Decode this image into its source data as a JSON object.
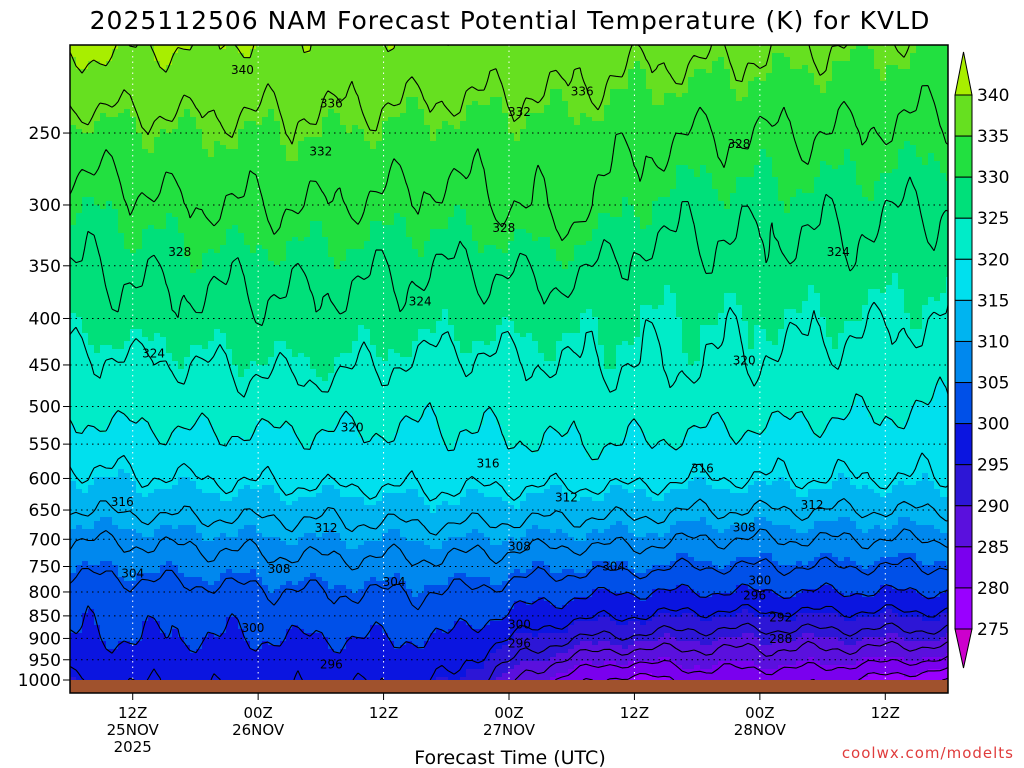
{
  "title": "2025112506 NAM Forecast Potential Temperature (K) for KVLD",
  "xlabel": "Forecast Time (UTC)",
  "credit": "coolwx.com/modelts",
  "colors": {
    "ground": "#a0522d",
    "contour": "#000000",
    "credit": "#e03c3c"
  },
  "chart_data": {
    "type": "heatmap",
    "title": "2025112506 NAM Forecast Potential Temperature (K) for KVLD",
    "xlabel": "Forecast Time (UTC)",
    "ylabel": "",
    "y_axis": {
      "scale": "log",
      "reversed": true,
      "range": [
        1000,
        200
      ],
      "ticks": [
        250,
        300,
        350,
        400,
        450,
        500,
        550,
        600,
        650,
        700,
        750,
        800,
        850,
        900,
        950,
        1000
      ]
    },
    "x_axis": {
      "range_hours": [
        0,
        84
      ],
      "ticks": [
        {
          "hour": 6,
          "lines": [
            "12Z",
            "25NOV",
            "2025"
          ]
        },
        {
          "hour": 18,
          "lines": [
            "00Z",
            "26NOV"
          ]
        },
        {
          "hour": 30,
          "lines": [
            "12Z"
          ]
        },
        {
          "hour": 42,
          "lines": [
            "00Z",
            "27NOV"
          ]
        },
        {
          "hour": 54,
          "lines": [
            "12Z"
          ]
        },
        {
          "hour": 66,
          "lines": [
            "00Z",
            "28NOV"
          ]
        },
        {
          "hour": 78,
          "lines": [
            "12Z"
          ]
        }
      ]
    },
    "grid": true,
    "colorbar": {
      "levels": [
        275,
        280,
        285,
        290,
        295,
        300,
        305,
        310,
        315,
        320,
        325,
        330,
        335,
        340
      ],
      "colors": [
        "#cc00cc",
        "#9900ff",
        "#7a00ee",
        "#5a10dd",
        "#2d16d6",
        "#0b15e0",
        "#0050e8",
        "#0088ee",
        "#00b4f0",
        "#00e0ee",
        "#00ecc8",
        "#00e07a",
        "#22e040",
        "#66e020",
        "#a8ee00"
      ],
      "labels": [
        340,
        335,
        330,
        325,
        320,
        315,
        310,
        305,
        300,
        295,
        290,
        285,
        280,
        275
      ]
    },
    "contour_interval": 4,
    "columns": [
      {
        "hour": 0,
        "theta": [
          [
            1000,
            296
          ],
          [
            950,
            298
          ],
          [
            900,
            300
          ],
          [
            850,
            301
          ],
          [
            800,
            302
          ],
          [
            750,
            305
          ],
          [
            700,
            308
          ],
          [
            650,
            312
          ],
          [
            600,
            315
          ],
          [
            550,
            318
          ],
          [
            500,
            321
          ],
          [
            450,
            323
          ],
          [
            400,
            326
          ],
          [
            350,
            328
          ],
          [
            300,
            330
          ],
          [
            250,
            334
          ],
          [
            200,
            341
          ]
        ]
      },
      {
        "hour": 12,
        "theta": [
          [
            1000,
            297
          ],
          [
            950,
            298
          ],
          [
            900,
            300
          ],
          [
            850,
            301
          ],
          [
            800,
            303
          ],
          [
            750,
            306
          ],
          [
            700,
            309
          ],
          [
            650,
            313
          ],
          [
            600,
            316
          ],
          [
            550,
            319
          ],
          [
            500,
            322
          ],
          [
            450,
            324
          ],
          [
            400,
            327
          ],
          [
            350,
            329
          ],
          [
            300,
            332
          ],
          [
            250,
            335
          ],
          [
            200,
            340
          ]
        ]
      },
      {
        "hour": 24,
        "theta": [
          [
            1000,
            297
          ],
          [
            950,
            298
          ],
          [
            900,
            300
          ],
          [
            850,
            302
          ],
          [
            800,
            304
          ],
          [
            750,
            307
          ],
          [
            700,
            310
          ],
          [
            650,
            313
          ],
          [
            600,
            317
          ],
          [
            550,
            319
          ],
          [
            500,
            322
          ],
          [
            450,
            325
          ],
          [
            400,
            327
          ],
          [
            350,
            329
          ],
          [
            300,
            332
          ],
          [
            250,
            335
          ],
          [
            200,
            339
          ]
        ]
      },
      {
        "hour": 36,
        "theta": [
          [
            1000,
            296
          ],
          [
            950,
            298
          ],
          [
            900,
            300
          ],
          [
            850,
            302
          ],
          [
            800,
            304
          ],
          [
            750,
            307
          ],
          [
            700,
            310
          ],
          [
            650,
            314
          ],
          [
            600,
            317
          ],
          [
            550,
            319
          ],
          [
            500,
            321
          ],
          [
            450,
            323
          ],
          [
            400,
            326
          ],
          [
            350,
            328
          ],
          [
            300,
            331
          ],
          [
            250,
            334
          ],
          [
            200,
            339
          ]
        ]
      },
      {
        "hour": 48,
        "theta": [
          [
            1000,
            282
          ],
          [
            950,
            287
          ],
          [
            900,
            292
          ],
          [
            850,
            297
          ],
          [
            800,
            301
          ],
          [
            750,
            305
          ],
          [
            700,
            309
          ],
          [
            650,
            313
          ],
          [
            600,
            317
          ],
          [
            550,
            320
          ],
          [
            500,
            322
          ],
          [
            450,
            324
          ],
          [
            400,
            326
          ],
          [
            350,
            329
          ],
          [
            300,
            333
          ],
          [
            250,
            334
          ],
          [
            200,
            338
          ]
        ]
      },
      {
        "hour": 54,
        "theta": [
          [
            1000,
            278
          ],
          [
            950,
            285
          ],
          [
            900,
            291
          ],
          [
            850,
            296
          ],
          [
            800,
            300
          ],
          [
            750,
            305
          ],
          [
            700,
            309
          ],
          [
            650,
            313
          ],
          [
            600,
            317
          ],
          [
            550,
            320
          ],
          [
            500,
            322
          ],
          [
            450,
            324
          ],
          [
            400,
            325
          ],
          [
            350,
            327
          ],
          [
            300,
            330
          ],
          [
            250,
            333
          ],
          [
            200,
            337
          ]
        ]
      },
      {
        "hour": 60,
        "theta": [
          [
            1000,
            282
          ],
          [
            950,
            286
          ],
          [
            900,
            290
          ],
          [
            850,
            295
          ],
          [
            800,
            300
          ],
          [
            750,
            304
          ],
          [
            700,
            308
          ],
          [
            650,
            312
          ],
          [
            600,
            316
          ],
          [
            550,
            319
          ],
          [
            500,
            322
          ],
          [
            450,
            324
          ],
          [
            400,
            325
          ],
          [
            350,
            327
          ],
          [
            300,
            329
          ],
          [
            250,
            332
          ],
          [
            200,
            337
          ]
        ]
      },
      {
        "hour": 72,
        "theta": [
          [
            1000,
            281
          ],
          [
            950,
            286
          ],
          [
            900,
            290
          ],
          [
            850,
            295
          ],
          [
            800,
            300
          ],
          [
            750,
            304
          ],
          [
            700,
            308
          ],
          [
            650,
            312
          ],
          [
            600,
            316
          ],
          [
            550,
            318
          ],
          [
            500,
            321
          ],
          [
            450,
            323
          ],
          [
            400,
            325
          ],
          [
            350,
            327
          ],
          [
            300,
            329
          ],
          [
            250,
            332
          ],
          [
            200,
            336
          ]
        ]
      },
      {
        "hour": 84,
        "theta": [
          [
            1000,
            276
          ],
          [
            950,
            284
          ],
          [
            900,
            290
          ],
          [
            850,
            295
          ],
          [
            800,
            300
          ],
          [
            750,
            304
          ],
          [
            700,
            308
          ],
          [
            650,
            312
          ],
          [
            600,
            316
          ],
          [
            550,
            318
          ],
          [
            500,
            320
          ],
          [
            450,
            322
          ],
          [
            400,
            324
          ],
          [
            350,
            326
          ],
          [
            300,
            328
          ],
          [
            250,
            331
          ],
          [
            200,
            335
          ]
        ]
      }
    ],
    "annotations": [
      {
        "text": "340",
        "hour": 16.5,
        "p": 213
      },
      {
        "text": "336",
        "hour": 25,
        "p": 232
      },
      {
        "text": "336",
        "hour": 49,
        "p": 225
      },
      {
        "text": "332",
        "hour": 43,
        "p": 237
      },
      {
        "text": "332",
        "hour": 24,
        "p": 262
      },
      {
        "text": "328",
        "hour": 64,
        "p": 257
      },
      {
        "text": "328",
        "hour": 10.5,
        "p": 338
      },
      {
        "text": "328",
        "hour": 41.5,
        "p": 318
      },
      {
        "text": "324",
        "hour": 33.5,
        "p": 383
      },
      {
        "text": "324",
        "hour": 8,
        "p": 437
      },
      {
        "text": "324",
        "hour": 73.5,
        "p": 338
      },
      {
        "text": "320",
        "hour": 64.5,
        "p": 445
      },
      {
        "text": "320",
        "hour": 27,
        "p": 527
      },
      {
        "text": "316",
        "hour": 40,
        "p": 578
      },
      {
        "text": "316",
        "hour": 60.5,
        "p": 585
      },
      {
        "text": "316",
        "hour": 5,
        "p": 637
      },
      {
        "text": "312",
        "hour": 47.5,
        "p": 630
      },
      {
        "text": "312",
        "hour": 24.5,
        "p": 680
      },
      {
        "text": "312",
        "hour": 71,
        "p": 642
      },
      {
        "text": "308",
        "hour": 43,
        "p": 713
      },
      {
        "text": "308",
        "hour": 64.5,
        "p": 679
      },
      {
        "text": "308",
        "hour": 20,
        "p": 755
      },
      {
        "text": "304",
        "hour": 6,
        "p": 763
      },
      {
        "text": "304",
        "hour": 31,
        "p": 780
      },
      {
        "text": "304",
        "hour": 52,
        "p": 750
      },
      {
        "text": "300",
        "hour": 66,
        "p": 777
      },
      {
        "text": "300",
        "hour": 43,
        "p": 869
      },
      {
        "text": "300",
        "hour": 17.5,
        "p": 876
      },
      {
        "text": "296",
        "hour": 65.5,
        "p": 807
      },
      {
        "text": "292",
        "hour": 68,
        "p": 854
      },
      {
        "text": "288",
        "hour": 68,
        "p": 901
      },
      {
        "text": "296",
        "hour": 43,
        "p": 912
      },
      {
        "text": "296",
        "hour": 25,
        "p": 962
      }
    ]
  }
}
